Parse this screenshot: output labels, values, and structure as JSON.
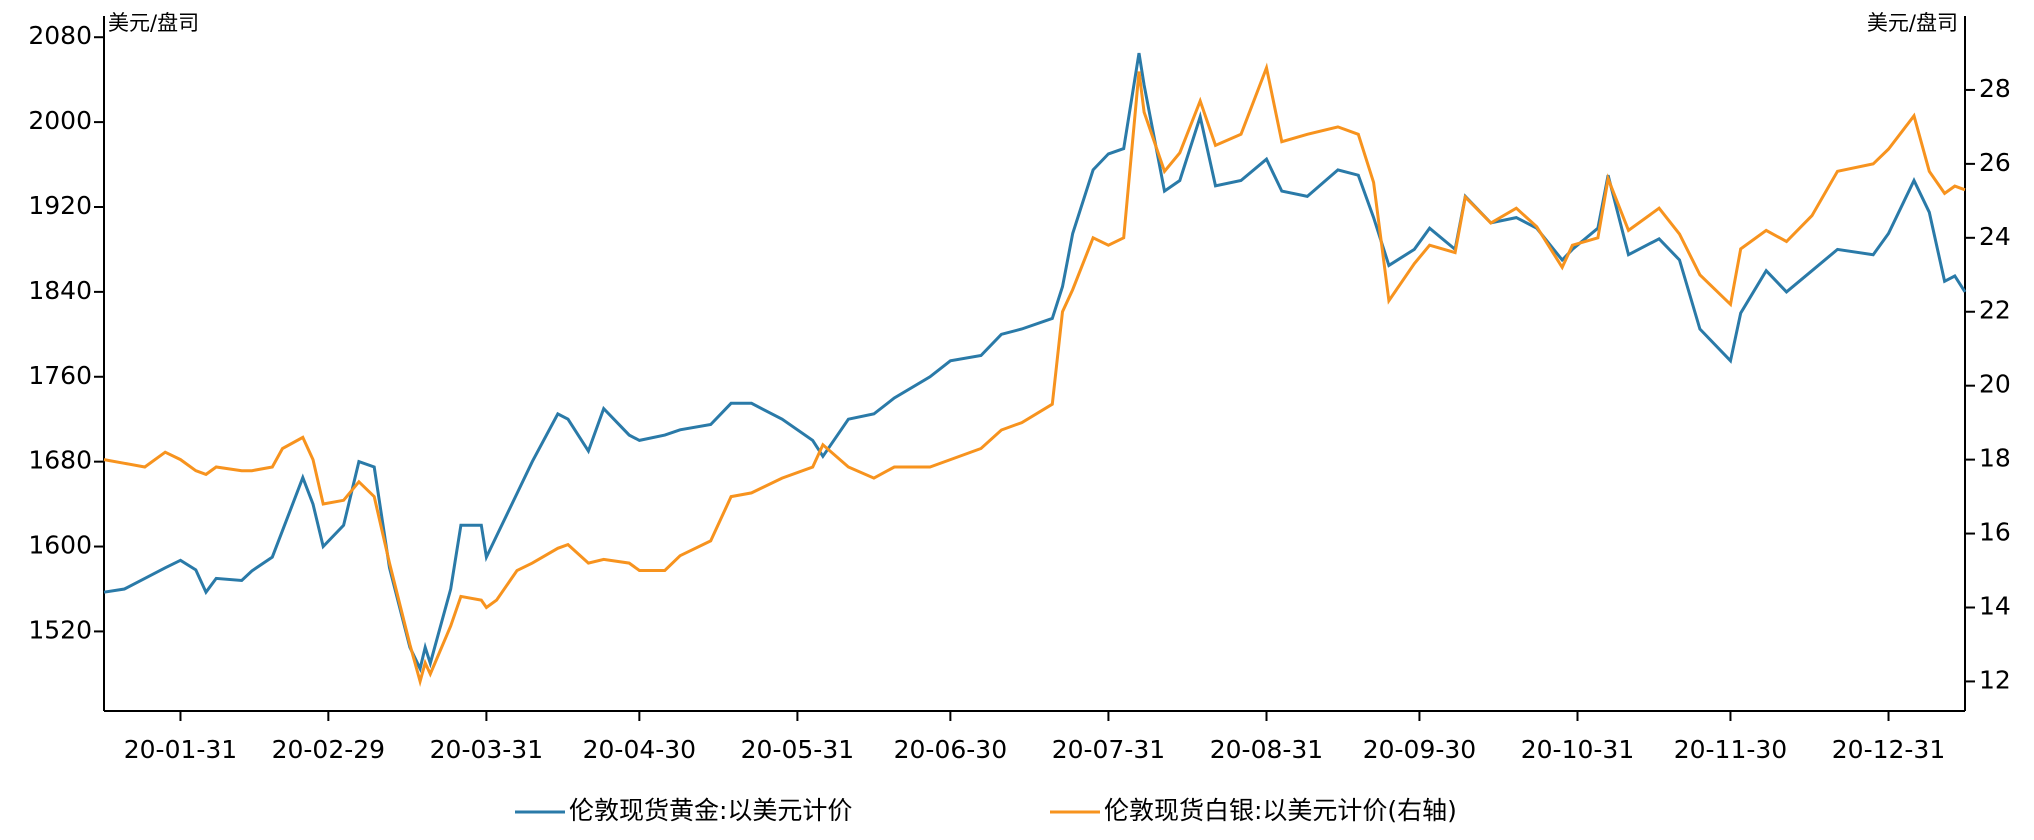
{
  "chart_data": {
    "type": "line",
    "y_label": "美元/盘司",
    "y2_label": "美元/盘司",
    "x": [
      "2020-01-16",
      "2020-01-20",
      "2020-01-24",
      "2020-01-28",
      "2020-01-31",
      "2020-02-03",
      "2020-02-05",
      "2020-02-07",
      "2020-02-12",
      "2020-02-14",
      "2020-02-18",
      "2020-02-20",
      "2020-02-24",
      "2020-02-26",
      "2020-02-28",
      "2020-03-03",
      "2020-03-06",
      "2020-03-09",
      "2020-03-12",
      "2020-03-16",
      "2020-03-18",
      "2020-03-19",
      "2020-03-20",
      "2020-03-24",
      "2020-03-26",
      "2020-03-30",
      "2020-03-31",
      "2020-04-02",
      "2020-04-06",
      "2020-04-09",
      "2020-04-14",
      "2020-04-16",
      "2020-04-20",
      "2020-04-23",
      "2020-04-28",
      "2020-04-30",
      "2020-05-05",
      "2020-05-08",
      "2020-05-14",
      "2020-05-18",
      "2020-05-22",
      "2020-05-28",
      "2020-06-03",
      "2020-06-05",
      "2020-06-10",
      "2020-06-15",
      "2020-06-19",
      "2020-06-26",
      "2020-06-30",
      "2020-07-06",
      "2020-07-10",
      "2020-07-14",
      "2020-07-20",
      "2020-07-22",
      "2020-07-24",
      "2020-07-28",
      "2020-07-31",
      "2020-08-03",
      "2020-08-06",
      "2020-08-07",
      "2020-08-11",
      "2020-08-14",
      "2020-08-18",
      "2020-08-21",
      "2020-08-26",
      "2020-08-31",
      "2020-09-03",
      "2020-09-08",
      "2020-09-14",
      "2020-09-18",
      "2020-09-21",
      "2020-09-24",
      "2020-09-29",
      "2020-10-02",
      "2020-10-07",
      "2020-10-09",
      "2020-10-14",
      "2020-10-19",
      "2020-10-23",
      "2020-10-28",
      "2020-10-30",
      "2020-11-04",
      "2020-11-06",
      "2020-11-10",
      "2020-11-16",
      "2020-11-20",
      "2020-11-24",
      "2020-11-30",
      "2020-12-02",
      "2020-12-07",
      "2020-12-11",
      "2020-12-16",
      "2020-12-21",
      "2020-12-28",
      "2020-12-31",
      "2021-01-05",
      "2021-01-08",
      "2021-01-11",
      "2021-01-13",
      "2021-01-15"
    ],
    "series": [
      {
        "name": "伦敦现货黄金:以美元计价",
        "color": "#2a7aa8",
        "values": [
          1557,
          1560,
          1570,
          1580,
          1587,
          1578,
          1557,
          1570,
          1568,
          1577,
          1590,
          1615,
          1665,
          1640,
          1600,
          1620,
          1680,
          1675,
          1580,
          1505,
          1485,
          1505,
          1490,
          1560,
          1620,
          1620,
          1590,
          1610,
          1650,
          1680,
          1725,
          1720,
          1690,
          1730,
          1705,
          1700,
          1705,
          1710,
          1715,
          1735,
          1735,
          1720,
          1700,
          1685,
          1720,
          1725,
          1740,
          1760,
          1775,
          1780,
          1800,
          1805,
          1815,
          1845,
          1895,
          1955,
          1970,
          1975,
          2065,
          2035,
          1935,
          1945,
          2005,
          1940,
          1945,
          1965,
          1935,
          1930,
          1955,
          1950,
          1910,
          1865,
          1880,
          1900,
          1880,
          1930,
          1905,
          1910,
          1900,
          1870,
          1880,
          1900,
          1950,
          1875,
          1890,
          1870,
          1805,
          1775,
          1820,
          1860,
          1840,
          1860,
          1880,
          1875,
          1895,
          1945,
          1915,
          1850,
          1855,
          1840
        ]
      },
      {
        "name": "伦敦现货白银:以美元计价(右轴)",
        "color": "#f7931e",
        "axis": "y2",
        "values": [
          18.0,
          17.9,
          17.8,
          18.2,
          18.0,
          17.7,
          17.6,
          17.8,
          17.7,
          17.7,
          17.8,
          18.3,
          18.6,
          18.0,
          16.8,
          16.9,
          17.4,
          17.0,
          15.2,
          13.0,
          12.0,
          12.5,
          12.2,
          13.5,
          14.3,
          14.2,
          14.0,
          14.2,
          15.0,
          15.2,
          15.6,
          15.7,
          15.2,
          15.3,
          15.2,
          15.0,
          15.0,
          15.4,
          15.8,
          17.0,
          17.1,
          17.5,
          17.8,
          18.4,
          17.8,
          17.5,
          17.8,
          17.8,
          18.0,
          18.3,
          18.8,
          19.0,
          19.5,
          22.0,
          22.6,
          24.0,
          23.8,
          24.0,
          28.5,
          27.4,
          25.8,
          26.3,
          27.7,
          26.5,
          26.8,
          28.6,
          26.6,
          26.8,
          27.0,
          26.8,
          25.5,
          22.3,
          23.3,
          23.8,
          23.6,
          25.1,
          24.4,
          24.8,
          24.3,
          23.2,
          23.8,
          24.0,
          25.6,
          24.2,
          24.8,
          24.1,
          23.0,
          22.2,
          23.7,
          24.2,
          23.9,
          24.6,
          25.8,
          26.0,
          26.4,
          27.3,
          25.8,
          25.2,
          25.4,
          25.3
        ]
      }
    ],
    "xlim": [
      "2020-01-16",
      "2021-01-15"
    ],
    "xticks": [
      {
        "value": "2020-01-31",
        "label": "20-01-31"
      },
      {
        "value": "2020-02-29",
        "label": "20-02-29"
      },
      {
        "value": "2020-03-31",
        "label": "20-03-31"
      },
      {
        "value": "2020-04-30",
        "label": "20-04-30"
      },
      {
        "value": "2020-05-31",
        "label": "20-05-31"
      },
      {
        "value": "2020-06-30",
        "label": "20-06-30"
      },
      {
        "value": "2020-07-31",
        "label": "20-07-31"
      },
      {
        "value": "2020-08-31",
        "label": "20-08-31"
      },
      {
        "value": "2020-09-30",
        "label": "20-09-30"
      },
      {
        "value": "2020-10-31",
        "label": "20-10-31"
      },
      {
        "value": "2020-11-30",
        "label": "20-11-30"
      },
      {
        "value": "2020-12-31",
        "label": "20-12-31"
      }
    ],
    "ylim": [
      1445,
      2100
    ],
    "yticks": [
      1520,
      1600,
      1680,
      1760,
      1840,
      1920,
      2000,
      2080
    ],
    "y2lim": [
      11.2,
      30
    ],
    "y2ticks": [
      12,
      14,
      16,
      18,
      20,
      22,
      24,
      26,
      28
    ]
  }
}
